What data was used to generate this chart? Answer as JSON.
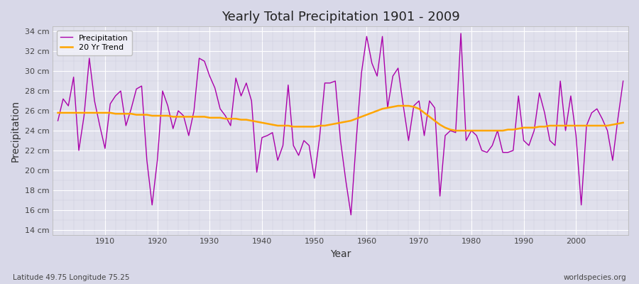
{
  "title": "Yearly Total Precipitation 1901 - 2009",
  "xlabel": "Year",
  "ylabel": "Precipitation",
  "subtitle": "Latitude 49.75 Longitude 75.25",
  "watermark": "worldspecies.org",
  "years": [
    1901,
    1902,
    1903,
    1904,
    1905,
    1906,
    1907,
    1908,
    1909,
    1910,
    1911,
    1912,
    1913,
    1914,
    1915,
    1916,
    1917,
    1918,
    1919,
    1920,
    1921,
    1922,
    1923,
    1924,
    1925,
    1926,
    1927,
    1928,
    1929,
    1930,
    1931,
    1932,
    1933,
    1934,
    1935,
    1936,
    1937,
    1938,
    1939,
    1940,
    1941,
    1942,
    1943,
    1944,
    1945,
    1946,
    1947,
    1948,
    1949,
    1950,
    1951,
    1952,
    1953,
    1954,
    1955,
    1956,
    1957,
    1958,
    1959,
    1960,
    1961,
    1962,
    1963,
    1964,
    1965,
    1966,
    1967,
    1968,
    1969,
    1970,
    1971,
    1972,
    1973,
    1974,
    1975,
    1976,
    1977,
    1978,
    1979,
    1980,
    1981,
    1982,
    1983,
    1984,
    1985,
    1986,
    1987,
    1988,
    1989,
    1990,
    1991,
    1992,
    1993,
    1994,
    1995,
    1996,
    1997,
    1998,
    1999,
    2000,
    2001,
    2002,
    2003,
    2004,
    2005,
    2006,
    2007,
    2008,
    2009
  ],
  "precip": [
    25.0,
    27.2,
    26.5,
    29.4,
    22.0,
    25.5,
    31.3,
    27.0,
    24.5,
    22.2,
    26.7,
    27.5,
    28.0,
    24.5,
    26.2,
    28.2,
    28.5,
    21.0,
    16.5,
    21.0,
    28.0,
    26.5,
    24.2,
    26.0,
    25.5,
    23.5,
    26.0,
    31.3,
    31.0,
    29.5,
    28.3,
    26.2,
    25.5,
    24.5,
    29.3,
    27.5,
    28.8,
    27.0,
    19.8,
    23.3,
    23.5,
    23.8,
    21.0,
    22.5,
    28.6,
    22.5,
    21.5,
    23.0,
    22.5,
    19.2,
    23.3,
    28.8,
    28.8,
    29.0,
    23.0,
    19.0,
    15.5,
    23.0,
    29.8,
    33.5,
    30.8,
    29.5,
    33.5,
    26.3,
    29.5,
    30.3,
    26.5,
    23.0,
    26.5,
    27.0,
    23.5,
    27.0,
    26.3,
    17.4,
    23.5,
    24.0,
    23.8,
    33.8,
    23.0,
    24.0,
    23.5,
    22.0,
    21.8,
    22.5,
    24.0,
    21.8,
    21.8,
    22.0,
    27.5,
    23.0,
    22.5,
    24.0,
    27.8,
    25.8,
    23.0,
    22.5,
    29.0,
    24.0,
    27.5,
    23.5,
    16.5,
    24.5,
    25.8,
    26.2,
    25.2,
    24.0,
    21.0,
    25.2,
    29.0
  ],
  "trend": [
    25.8,
    25.8,
    25.8,
    25.8,
    25.8,
    25.8,
    25.8,
    25.8,
    25.8,
    25.8,
    25.8,
    25.7,
    25.7,
    25.7,
    25.7,
    25.6,
    25.6,
    25.6,
    25.5,
    25.5,
    25.5,
    25.5,
    25.4,
    25.4,
    25.4,
    25.4,
    25.4,
    25.4,
    25.4,
    25.3,
    25.3,
    25.3,
    25.2,
    25.2,
    25.2,
    25.1,
    25.1,
    25.0,
    24.9,
    24.8,
    24.7,
    24.6,
    24.5,
    24.5,
    24.5,
    24.4,
    24.4,
    24.4,
    24.4,
    24.4,
    24.5,
    24.5,
    24.6,
    24.7,
    24.8,
    24.9,
    25.0,
    25.2,
    25.4,
    25.6,
    25.8,
    26.0,
    26.2,
    26.3,
    26.4,
    26.5,
    26.5,
    26.5,
    26.4,
    26.2,
    25.8,
    25.4,
    25.0,
    24.6,
    24.3,
    24.1,
    24.0,
    24.0,
    24.0,
    24.0,
    24.0,
    24.0,
    24.0,
    24.0,
    24.0,
    24.0,
    24.1,
    24.1,
    24.2,
    24.3,
    24.3,
    24.3,
    24.4,
    24.4,
    24.5,
    24.5,
    24.5,
    24.5,
    24.5,
    24.5,
    24.5,
    24.5,
    24.5,
    24.5,
    24.5,
    24.5,
    24.6,
    24.7,
    24.8
  ],
  "precip_color": "#aa00aa",
  "trend_color": "#FFA500",
  "fig_bg_color": "#d8d8e8",
  "plot_bg_color": "#e0e0ec",
  "grid_major_color": "#ffffff",
  "grid_minor_color": "#ccccdd",
  "ylim": [
    13.5,
    34.5
  ],
  "yticks": [
    14,
    16,
    18,
    20,
    22,
    24,
    26,
    28,
    30,
    32,
    34
  ],
  "xlim": [
    1900,
    2010
  ],
  "xticks": [
    1910,
    1920,
    1930,
    1940,
    1950,
    1960,
    1970,
    1980,
    1990,
    2000
  ]
}
